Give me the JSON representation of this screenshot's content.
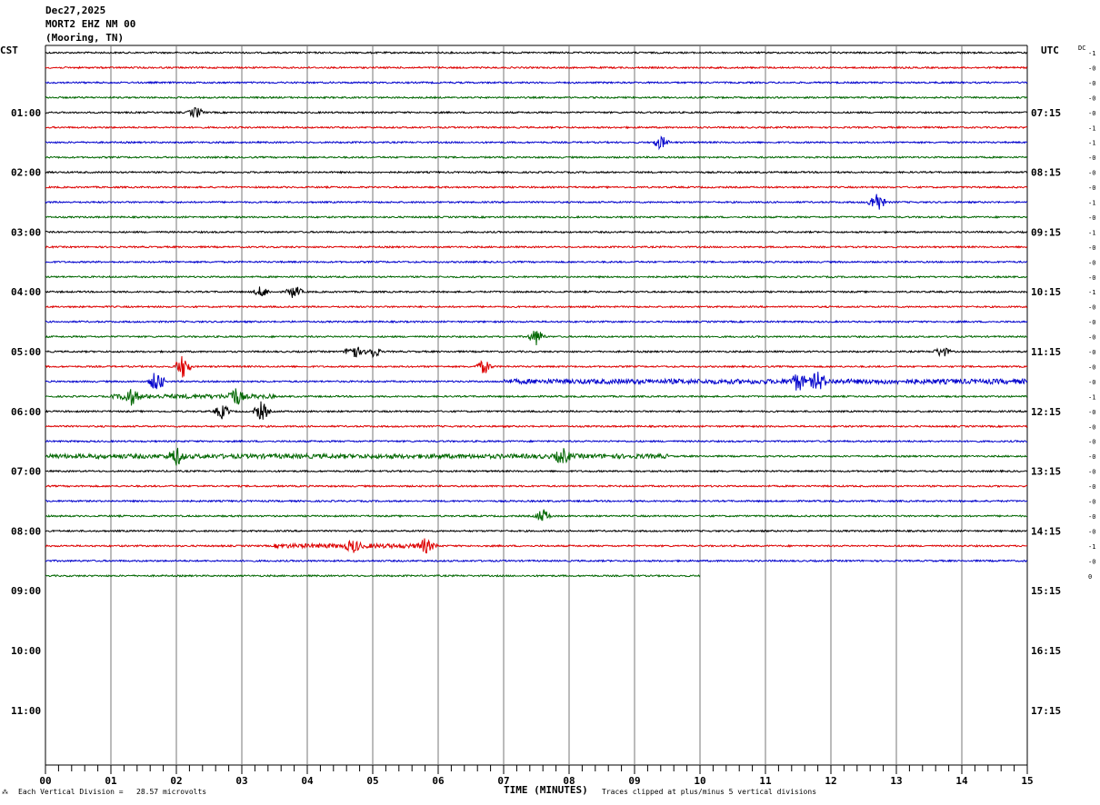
{
  "header": {
    "date": "Dec27,2025",
    "station": "MORT2 EHZ NM 00",
    "location": "(Mooring, TN)"
  },
  "left_tz": "CST",
  "right_tz": "UTC",
  "dc_label": "DC",
  "footer": {
    "left_text": "Each Vertical Division =   28.57 microvolts",
    "center_text": "TIME (MINUTES)",
    "right_text": "Traces clipped at plus/minus 5 vertical divisions"
  },
  "chart_data": {
    "type": "line",
    "title": "",
    "xlabel": "TIME (MINUTES)",
    "x_ticks": [
      "00",
      "01",
      "02",
      "03",
      "04",
      "05",
      "06",
      "07",
      "08",
      "09",
      "10",
      "11",
      "12",
      "13",
      "14",
      "15"
    ],
    "xlim": [
      0,
      15
    ],
    "row_minutes": 15,
    "trace_colors": [
      "#000000",
      "#dd0000",
      "#0000cc",
      "#006600"
    ],
    "left_hour_labels": [
      {
        "row": 4,
        "label": "01:00"
      },
      {
        "row": 8,
        "label": "02:00"
      },
      {
        "row": 12,
        "label": "03:00"
      },
      {
        "row": 16,
        "label": "04:00"
      },
      {
        "row": 20,
        "label": "05:00"
      },
      {
        "row": 24,
        "label": "06:00"
      },
      {
        "row": 28,
        "label": "07:00"
      },
      {
        "row": 32,
        "label": "08:00"
      },
      {
        "row": 36,
        "label": "09:00"
      },
      {
        "row": 40,
        "label": "10:00"
      },
      {
        "row": 44,
        "label": "11:00"
      }
    ],
    "right_hour_labels": [
      {
        "row": 4,
        "label": "07:15"
      },
      {
        "row": 8,
        "label": "08:15"
      },
      {
        "row": 12,
        "label": "09:15"
      },
      {
        "row": 16,
        "label": "10:15"
      },
      {
        "row": 20,
        "label": "11:15"
      },
      {
        "row": 24,
        "label": "12:15"
      },
      {
        "row": 28,
        "label": "13:15"
      },
      {
        "row": 32,
        "label": "14:15"
      },
      {
        "row": 36,
        "label": "15:15"
      },
      {
        "row": 40,
        "label": "16:15"
      },
      {
        "row": 44,
        "label": "17:15"
      }
    ],
    "dc_offsets": [
      "-1",
      "-0",
      "-0",
      "-0",
      "-0",
      "-1",
      "-1",
      "-0",
      "-0",
      "-0",
      "-1",
      "-0",
      "-1",
      "-0",
      "-0",
      "-0",
      "-1",
      "-0",
      "-0",
      "-0",
      "-0",
      "-0",
      "-0",
      "-1",
      "-0",
      "-0",
      "-0",
      "-0",
      "-0",
      "-0",
      "-0",
      "-0",
      "-0",
      "-1",
      "-0",
      "0"
    ],
    "traces_end_minute_last_row": 10,
    "events": [
      {
        "row": 4,
        "minute": 2.3,
        "amp": 1.0
      },
      {
        "row": 6,
        "minute": 9.4,
        "amp": 1.2
      },
      {
        "row": 10,
        "minute": 12.7,
        "amp": 2.0
      },
      {
        "row": 16,
        "minute": 3.3,
        "amp": 1.0
      },
      {
        "row": 16,
        "minute": 3.8,
        "amp": 1.2
      },
      {
        "row": 19,
        "minute": 7.5,
        "amp": 1.5
      },
      {
        "row": 20,
        "minute": 4.7,
        "amp": 1.6
      },
      {
        "row": 20,
        "minute": 5.0,
        "amp": 1.2
      },
      {
        "row": 20,
        "minute": 13.7,
        "amp": 1.0
      },
      {
        "row": 21,
        "minute": 2.1,
        "amp": 2.2
      },
      {
        "row": 21,
        "minute": 6.7,
        "amp": 1.3
      },
      {
        "row": 22,
        "minute": 1.7,
        "amp": 2.0
      },
      {
        "row": 22,
        "minute": 11.5,
        "amp": 1.6
      },
      {
        "row": 22,
        "minute": 11.8,
        "amp": 1.6
      },
      {
        "row": 23,
        "minute": 1.3,
        "amp": 1.4
      },
      {
        "row": 23,
        "minute": 2.9,
        "amp": 1.6
      },
      {
        "row": 24,
        "minute": 2.7,
        "amp": 1.3
      },
      {
        "row": 24,
        "minute": 3.3,
        "amp": 1.8
      },
      {
        "row": 27,
        "minute": 2.0,
        "amp": 1.5
      },
      {
        "row": 27,
        "minute": 7.9,
        "amp": 1.3
      },
      {
        "row": 31,
        "minute": 7.6,
        "amp": 1.2
      },
      {
        "row": 33,
        "minute": 4.7,
        "amp": 1.0
      },
      {
        "row": 33,
        "minute": 5.8,
        "amp": 1.1
      }
    ],
    "noisy_rows": [
      {
        "row": 22,
        "from": 7.0,
        "to": 15.0,
        "amp": 0.8
      },
      {
        "row": 23,
        "from": 1.0,
        "to": 3.5,
        "amp": 0.7
      },
      {
        "row": 27,
        "from": 0.0,
        "to": 9.5,
        "amp": 0.7
      },
      {
        "row": 33,
        "from": 3.5,
        "to": 6.0,
        "amp": 0.7
      }
    ]
  }
}
